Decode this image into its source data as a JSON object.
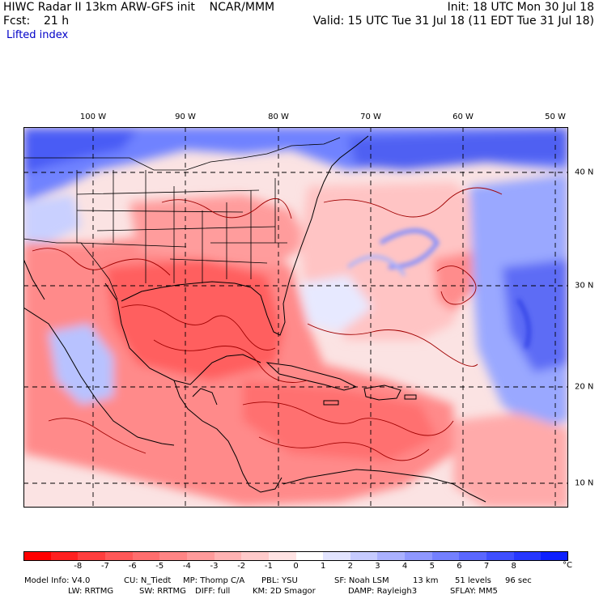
{
  "header": {
    "title_line": "HIWC Radar II 13km ARW-GFS init    NCAR/MMM",
    "fcst_label": "Fcst:",
    "fcst_value": "21 h",
    "init": "Init: 18 UTC Mon 30 Jul 18",
    "valid": "Valid: 15 UTC Tue 31 Jul 18 (11 EDT Tue 31 Jul 18)",
    "field": "Lifted index"
  },
  "map": {
    "longitude_labels": [
      "100 W",
      "90 W",
      "80 W",
      "70 W",
      "60 W",
      "50 W"
    ],
    "latitude_labels": [
      "40 N",
      "30 N",
      "20 N",
      "10 N"
    ],
    "colors": {
      "strong_negative": "#ff5a5a",
      "moderate_negative": "#ff8c8c",
      "weak_negative": "#ffc8c8",
      "near_zero": "#fbe7e7",
      "weak_positive": "#d6dcff",
      "moderate_positive": "#8fa0ff",
      "strong_positive": "#3b4cf2",
      "coast": "#000000",
      "contour": "#aa0000",
      "grid": "#000000"
    }
  },
  "colorbar": {
    "colors": [
      "#ff0000",
      "#ff2020",
      "#ff3e3e",
      "#ff5858",
      "#ff6e6e",
      "#ff8585",
      "#ff9b9b",
      "#ffb3b3",
      "#ffcaca",
      "#ffe3e3",
      "#ffffff",
      "#e2e4ff",
      "#c6cbff",
      "#aab1ff",
      "#8f98ff",
      "#7480ff",
      "#5a67ff",
      "#3f4fff",
      "#2637ff",
      "#0d20ff"
    ],
    "ticks": [
      "-8",
      "-7",
      "-6",
      "-5",
      "-4",
      "-3",
      "-2",
      "-1",
      "0",
      "1",
      "2",
      "3",
      "4",
      "5",
      "6",
      "7",
      "8"
    ],
    "unit": "°C"
  },
  "model_info": {
    "line1": [
      "Model Info: V4.0",
      "CU: N_Tiedt",
      "MP: Thomp C/A",
      "PBL: YSU",
      "SF: Noah LSM",
      "13 km",
      "51 levels",
      "96 sec"
    ],
    "line2": [
      "LW: RRTMG",
      "SW: RRTMG",
      "DIFF: full",
      "KM: 2D Smagor",
      "DAMP: Rayleigh3",
      "SFLAY: MM5"
    ]
  }
}
